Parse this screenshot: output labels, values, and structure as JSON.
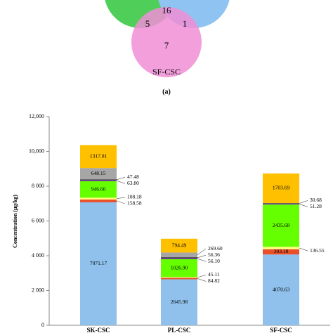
{
  "venn": {
    "counts": [
      16,
      5,
      1,
      7
    ],
    "label": "SF-CSC",
    "caption": "(a)"
  },
  "chart_data": {
    "type": "stacked-bar",
    "y_label": "Concentration (μg/kg)",
    "categories": [
      "SK-CSC",
      "PL-CSC",
      "SF-CSC"
    ],
    "ylim": [
      0,
      12000
    ],
    "yticks": [
      0,
      {
        "value": 2000,
        "label": "2 000"
      },
      {
        "value": 4000,
        "label": "4 000"
      },
      {
        "value": 6000,
        "label": "6 000"
      },
      {
        "value": 8000,
        "label": "8 000"
      },
      {
        "value": 10000,
        "label": "10,000"
      },
      {
        "value": 12000,
        "label": "12,000"
      }
    ],
    "series": [
      {
        "color": "#8fc1ec",
        "values": [
          7071.17,
          2645.98,
          4070.63
        ],
        "value_labels": [
          "7071.17",
          "2645.98",
          "4070.63"
        ]
      },
      {
        "color": "#e8502a",
        "values": [
          158.58,
          84.82,
          303.18
        ],
        "value_labels": [
          "158.58",
          "84.82",
          "303.18"
        ]
      },
      {
        "color": "#ffff80",
        "values": [
          108.18,
          45.11,
          136.55
        ],
        "value_labels": [
          "108.18",
          "45.11",
          "136.55"
        ]
      },
      {
        "color": "#66ff00",
        "values": [
          946.6,
          1026.9,
          2435.68
        ],
        "value_labels": [
          "946.60",
          "1026.90",
          "2435.68"
        ]
      },
      {
        "color": "#7030a0",
        "values": [
          63.8,
          56.1,
          51.28
        ],
        "value_labels": [
          "63.80",
          "56.10",
          "51.28"
        ]
      },
      {
        "color": "#404040",
        "values": [
          47.48,
          56.36,
          30.68
        ],
        "value_labels": [
          "47.48",
          "56.36",
          "30.68"
        ]
      },
      {
        "color": "#a6a6a6",
        "values": [
          648.15,
          269.6,
          null
        ],
        "value_labels": [
          "648.15",
          "269.60",
          null
        ]
      },
      {
        "color": "#ffc000",
        "values": [
          1317.01,
          794.49,
          1703.69
        ],
        "value_labels": [
          "1317.01",
          "794.49",
          "1703.69"
        ]
      }
    ]
  }
}
